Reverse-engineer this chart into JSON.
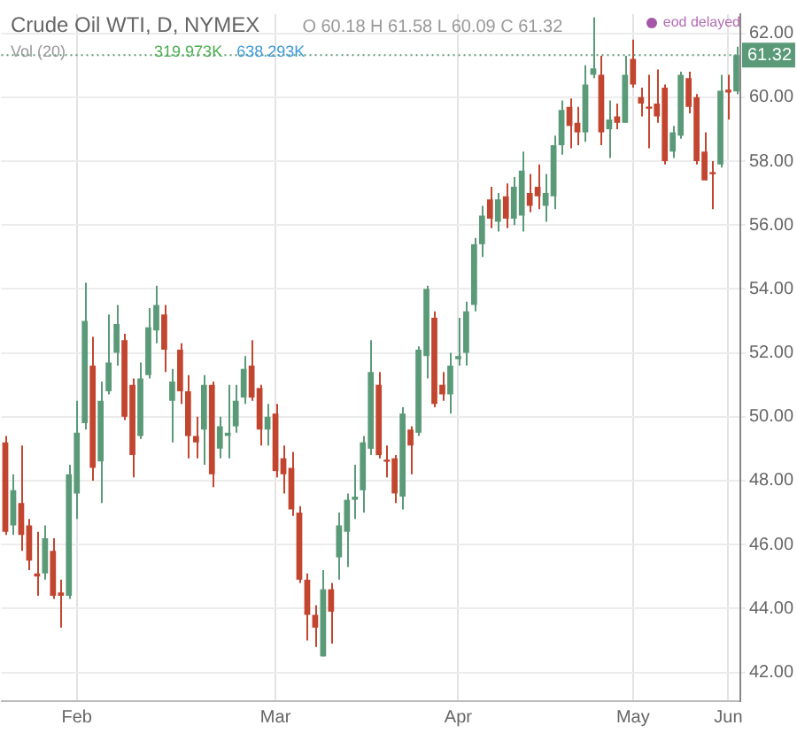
{
  "chart_data": {
    "type": "candlestick",
    "title": "Crude Oil WTI, D, NYMEX",
    "subtitle": "O 60.18 H 61.58 L 60.09 C 61.32",
    "annotations": [
      "Vol (20)",
      "319.973K",
      "638.293K",
      "eod delayed"
    ],
    "categories": [
      null,
      null,
      null,
      null,
      null,
      null,
      null,
      null,
      null,
      "Feb",
      null,
      null,
      null,
      null,
      null,
      null,
      null,
      null,
      null,
      null,
      null,
      null,
      null,
      null,
      null,
      null,
      null,
      null,
      null,
      null,
      null,
      null,
      null,
      null,
      "Mar",
      null,
      null,
      null,
      null,
      null,
      null,
      null,
      null,
      null,
      null,
      null,
      null,
      null,
      null,
      null,
      null,
      null,
      null,
      null,
      null,
      null,
      null,
      "Apr",
      null,
      null,
      null,
      null,
      null,
      null,
      null,
      null,
      null,
      null,
      null,
      null,
      null,
      null,
      null,
      null,
      null,
      null,
      null,
      null,
      null,
      "May",
      null,
      null,
      null,
      null,
      null,
      null,
      null,
      null,
      null,
      null,
      null,
      "Jun",
      null
    ],
    "ohlc": [
      [
        49.2,
        49.4,
        46.3,
        46.4
      ],
      [
        46.6,
        48.2,
        46.3,
        47.7
      ],
      [
        47.3,
        49.1,
        45.8,
        46.3
      ],
      [
        46.6,
        46.8,
        45.2,
        45.5
      ],
      [
        45.1,
        46.4,
        44.4,
        45.0
      ],
      [
        45.1,
        46.6,
        44.9,
        46.2
      ],
      [
        45.8,
        46.2,
        44.3,
        44.4
      ],
      [
        44.5,
        44.9,
        43.4,
        44.4
      ],
      [
        44.4,
        48.5,
        44.3,
        48.2
      ],
      [
        47.6,
        50.5,
        46.8,
        49.5
      ],
      [
        49.8,
        54.2,
        49.6,
        53.0
      ],
      [
        51.6,
        52.5,
        48.0,
        48.4
      ],
      [
        48.6,
        51.1,
        47.3,
        50.5
      ],
      [
        50.8,
        53.2,
        50.7,
        51.7
      ],
      [
        52.0,
        53.5,
        51.6,
        52.9
      ],
      [
        52.4,
        52.6,
        49.9,
        50.0
      ],
      [
        51.0,
        51.2,
        48.1,
        48.8
      ],
      [
        49.4,
        51.7,
        49.3,
        51.2
      ],
      [
        51.3,
        53.4,
        51.2,
        52.8
      ],
      [
        52.7,
        54.1,
        52.3,
        53.5
      ],
      [
        53.2,
        53.5,
        51.4,
        52.1
      ],
      [
        50.5,
        51.5,
        49.2,
        51.1
      ],
      [
        52.1,
        52.3,
        50.4,
        50.8
      ],
      [
        50.8,
        51.3,
        48.7,
        49.4
      ],
      [
        49.4,
        50.0,
        48.7,
        49.2
      ],
      [
        49.6,
        51.3,
        48.5,
        51.0
      ],
      [
        51.0,
        51.1,
        47.8,
        48.2
      ],
      [
        49.0,
        50.0,
        48.7,
        49.7
      ],
      [
        49.4,
        51.0,
        48.7,
        49.5
      ],
      [
        49.7,
        51.0,
        49.5,
        50.5
      ],
      [
        50.6,
        51.9,
        50.4,
        51.5
      ],
      [
        51.6,
        52.4,
        50.5,
        50.6
      ],
      [
        50.9,
        51.0,
        49.1,
        49.6
      ],
      [
        49.6,
        50.4,
        49.1,
        50.0
      ],
      [
        50.1,
        50.4,
        48.1,
        48.3
      ],
      [
        48.7,
        49.1,
        47.6,
        48.2
      ],
      [
        48.4,
        48.9,
        46.9,
        47.1
      ],
      [
        47.0,
        47.2,
        44.8,
        44.9
      ],
      [
        44.9,
        45.1,
        43.0,
        43.8
      ],
      [
        43.8,
        44.1,
        42.8,
        43.4
      ],
      [
        42.5,
        45.2,
        42.5,
        44.6
      ],
      [
        44.6,
        44.8,
        42.9,
        43.9
      ],
      [
        45.6,
        47.0,
        44.9,
        46.6
      ],
      [
        46.4,
        47.6,
        45.3,
        47.4
      ],
      [
        47.4,
        48.5,
        46.8,
        47.5
      ],
      [
        47.7,
        49.4,
        47.0,
        49.2
      ],
      [
        49.0,
        52.4,
        48.8,
        51.4
      ],
      [
        51.0,
        51.4,
        48.7,
        48.8
      ],
      [
        48.65,
        49.1,
        48.1,
        48.6
      ],
      [
        48.7,
        48.8,
        47.3,
        47.6
      ],
      [
        47.5,
        50.3,
        47.1,
        50.1
      ],
      [
        49.6,
        49.7,
        48.2,
        49.1
      ],
      [
        49.5,
        52.2,
        49.4,
        52.1
      ],
      [
        51.9,
        54.1,
        51.2,
        54.0
      ],
      [
        53.1,
        53.3,
        50.3,
        50.4
      ],
      [
        51.0,
        51.4,
        50.5,
        50.7
      ],
      [
        50.7,
        52.0,
        50.1,
        51.6
      ],
      [
        51.8,
        53.1,
        51.6,
        51.9
      ],
      [
        52.0,
        53.6,
        51.6,
        53.3
      ],
      [
        53.5,
        55.6,
        53.3,
        55.4
      ],
      [
        55.4,
        56.6,
        55.0,
        56.3
      ],
      [
        56.8,
        57.2,
        55.9,
        56.2
      ],
      [
        56.1,
        57.0,
        55.8,
        56.8
      ],
      [
        56.9,
        57.3,
        55.9,
        56.2
      ],
      [
        56.2,
        57.5,
        56.0,
        57.2
      ],
      [
        56.3,
        58.3,
        55.8,
        57.7
      ],
      [
        57.0,
        57.6,
        56.4,
        56.6
      ],
      [
        57.2,
        57.9,
        56.5,
        56.9
      ],
      [
        56.6,
        57.6,
        56.1,
        57.0
      ],
      [
        56.9,
        58.8,
        56.5,
        58.5
      ],
      [
        58.5,
        59.9,
        58.2,
        59.6
      ],
      [
        59.7,
        59.96,
        58.4,
        59.1
      ],
      [
        59.2,
        59.7,
        58.5,
        58.9
      ],
      [
        58.9,
        61.0,
        58.6,
        60.4
      ],
      [
        60.7,
        62.5,
        60.6,
        60.9
      ],
      [
        60.7,
        61.3,
        58.5,
        58.9
      ],
      [
        59.0,
        59.9,
        58.1,
        59.3
      ],
      [
        59.4,
        59.8,
        59.0,
        59.2
      ],
      [
        59.2,
        61.3,
        59.2,
        60.7
      ],
      [
        61.2,
        61.8,
        60.3,
        60.4
      ],
      [
        60.0,
        60.3,
        59.4,
        59.8
      ],
      [
        59.7,
        60.7,
        58.4,
        59.65
      ],
      [
        59.8,
        60.87,
        59.2,
        59.4
      ],
      [
        60.3,
        60.4,
        57.9,
        58.0
      ],
      [
        58.3,
        59.1,
        58.1,
        58.9
      ],
      [
        58.8,
        60.8,
        58.7,
        60.7
      ],
      [
        60.6,
        60.8,
        59.5,
        59.7
      ],
      [
        60.0,
        60.1,
        57.9,
        58.0
      ],
      [
        58.3,
        58.9,
        57.4,
        57.4
      ],
      [
        57.65,
        58.0,
        56.5,
        57.6
      ],
      [
        57.9,
        60.7,
        57.8,
        60.2
      ],
      [
        60.24,
        60.7,
        59.3,
        60.15
      ],
      [
        60.18,
        61.58,
        60.09,
        61.32
      ]
    ],
    "colors": [
      "#c2452f",
      "#5a9a78",
      "#c2452f",
      "#c2452f",
      "#c2452f",
      "#5a9a78",
      "#c2452f",
      "#c2452f",
      "#5a9a78",
      "#5a9a78",
      "#5a9a78",
      "#c2452f",
      "#5a9a78",
      "#5a9a78",
      "#5a9a78",
      "#c2452f",
      "#c2452f",
      "#5a9a78",
      "#5a9a78",
      "#5a9a78",
      "#c2452f",
      "#5a9a78",
      "#c2452f",
      "#c2452f",
      "#c2452f",
      "#5a9a78",
      "#c2452f",
      "#5a9a78",
      "#5a9a78",
      "#5a9a78",
      "#5a9a78",
      "#c2452f",
      "#c2452f",
      "#5a9a78",
      "#c2452f",
      "#c2452f",
      "#c2452f",
      "#c2452f",
      "#c2452f",
      "#c2452f",
      "#5a9a78",
      "#c2452f",
      "#5a9a78",
      "#5a9a78",
      "#5a9a78",
      "#5a9a78",
      "#5a9a78",
      "#c2452f",
      "#c2452f",
      "#c2452f",
      "#5a9a78",
      "#c2452f",
      "#5a9a78",
      "#5a9a78",
      "#c2452f",
      "#c2452f",
      "#5a9a78",
      "#5a9a78",
      "#5a9a78",
      "#5a9a78",
      "#5a9a78",
      "#c2452f",
      "#5a9a78",
      "#c2452f",
      "#5a9a78",
      "#5a9a78",
      "#c2452f",
      "#c2452f",
      "#5a9a78",
      "#5a9a78",
      "#5a9a78",
      "#c2452f",
      "#c2452f",
      "#5a9a78",
      "#5a9a78",
      "#c2452f",
      "#5a9a78",
      "#c2452f",
      "#5a9a78",
      "#c2452f",
      "#c2452f",
      "#c2452f",
      "#c2452f",
      "#c2452f",
      "#5a9a78",
      "#5a9a78",
      "#c2452f",
      "#c2452f",
      "#c2452f",
      "#c2452f",
      "#5a9a78",
      "#c2452f",
      "#5a9a78"
    ],
    "ylim": [
      41.1,
      62.6
    ],
    "yticks": [
      {
        "value": 42,
        "label": "42.00"
      },
      {
        "value": 44,
        "label": "44.00"
      },
      {
        "value": 46,
        "label": "46.00"
      },
      {
        "value": 48,
        "label": "48.00"
      },
      {
        "value": 50,
        "label": "50.00"
      },
      {
        "value": 52,
        "label": "52.00"
      },
      {
        "value": 54,
        "label": "54.00"
      },
      {
        "value": 56,
        "label": "56.00"
      },
      {
        "value": 58,
        "label": "58.00"
      },
      {
        "value": 60,
        "label": "60.00"
      },
      {
        "value": 62,
        "label": "62.00"
      }
    ],
    "ref_lines": [
      {
        "axis": "y",
        "value": 61.32,
        "label": "61.32",
        "color": "#5a9a78",
        "line_style": "dotted"
      }
    ],
    "grid": true
  }
}
